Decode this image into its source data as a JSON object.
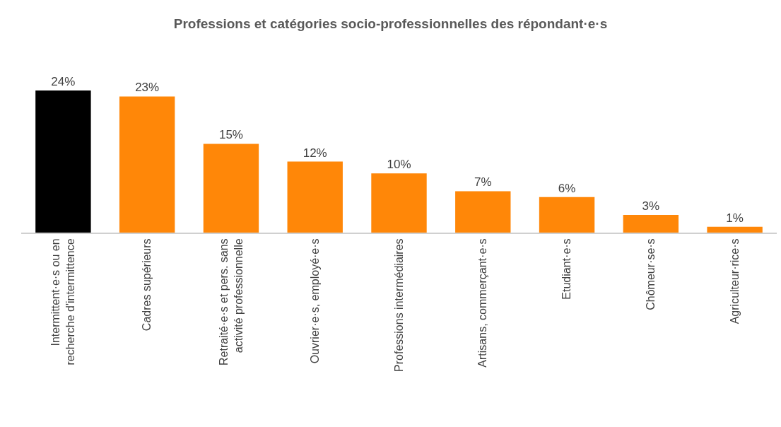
{
  "chart_data": {
    "type": "bar",
    "title": "Professions et catégories socio-professionnelles des répondant·e·s",
    "categories": [
      "Intermittent·e·s ou en recherche d'intermittence",
      "Cadres supérieurs",
      "Retraité·e·s et pers. sans activité professionnelle",
      "Ouvrier·e·s, employé·e·s",
      "Professions intermédiaires",
      "Artisans, commerçant·e·s",
      "Etudiant·e·s",
      "Chômeur·se·s",
      "Agriculteur·rice·s"
    ],
    "values": [
      24,
      23,
      15,
      12,
      10,
      7,
      6,
      3,
      1
    ],
    "value_labels": [
      "24%",
      "23%",
      "15%",
      "12%",
      "10%",
      "7%",
      "6%",
      "3%",
      "1%"
    ],
    "colors": [
      "#000000",
      "#ff8708",
      "#ff8708",
      "#ff8708",
      "#ff8708",
      "#ff8708",
      "#ff8708",
      "#ff8708",
      "#ff8708"
    ],
    "orientation": "vertical"
  }
}
